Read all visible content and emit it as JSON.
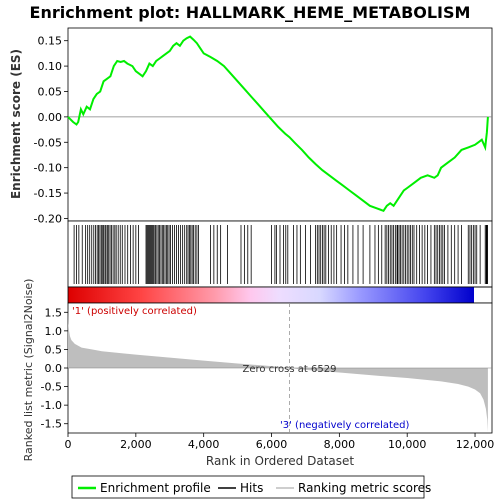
{
  "chart_data": {
    "type": "line",
    "title": "Enrichment plot: HALLMARK_HEME_METABOLISM",
    "xlabel": "Rank in Ordered Dataset",
    "es_panel": {
      "ylabel": "Enrichment score (ES)",
      "ylim": [
        -0.205,
        0.175
      ],
      "yticks": [
        "0.15",
        "0.10",
        "0.05",
        "0.00",
        "-0.05",
        "-0.10",
        "-0.15",
        "-0.20"
      ],
      "ytick_values": [
        0.15,
        0.1,
        0.05,
        0.0,
        -0.05,
        -0.1,
        -0.15,
        -0.2
      ],
      "series": [
        {
          "name": "Enrichment profile",
          "color": "#00ee00",
          "x": [
            0,
            150,
            250,
            300,
            380,
            450,
            550,
            650,
            750,
            850,
            950,
            1050,
            1150,
            1250,
            1350,
            1450,
            1550,
            1650,
            1750,
            1900,
            2000,
            2100,
            2200,
            2300,
            2400,
            2500,
            2600,
            2700,
            2800,
            2900,
            3000,
            3100,
            3200,
            3300,
            3400,
            3500,
            3600,
            3700,
            3800,
            3900,
            4000,
            4200,
            4400,
            4600,
            4800,
            5000,
            5200,
            5400,
            5600,
            5800,
            6000,
            6200,
            6400,
            6529,
            6700,
            6900,
            7100,
            7300,
            7500,
            7700,
            7900,
            8100,
            8300,
            8500,
            8700,
            8900,
            9100,
            9300,
            9400,
            9500,
            9600,
            9700,
            9800,
            9900,
            10000,
            10200,
            10400,
            10600,
            10800,
            10900,
            11000,
            11200,
            11400,
            11600,
            11800,
            12000,
            12100,
            12200,
            12300,
            12350,
            12380
          ],
          "y": [
            0.0,
            -0.01,
            -0.015,
            -0.01,
            0.015,
            0.005,
            0.02,
            0.015,
            0.035,
            0.045,
            0.05,
            0.07,
            0.075,
            0.08,
            0.1,
            0.11,
            0.108,
            0.11,
            0.105,
            0.1,
            0.09,
            0.085,
            0.08,
            0.09,
            0.105,
            0.1,
            0.11,
            0.115,
            0.12,
            0.125,
            0.13,
            0.14,
            0.145,
            0.14,
            0.15,
            0.155,
            0.158,
            0.152,
            0.145,
            0.135,
            0.125,
            0.118,
            0.11,
            0.1,
            0.085,
            0.07,
            0.055,
            0.04,
            0.025,
            0.01,
            -0.005,
            -0.02,
            -0.033,
            -0.04,
            -0.052,
            -0.065,
            -0.08,
            -0.093,
            -0.105,
            -0.115,
            -0.125,
            -0.135,
            -0.145,
            -0.155,
            -0.165,
            -0.175,
            -0.18,
            -0.185,
            -0.175,
            -0.17,
            -0.175,
            -0.165,
            -0.155,
            -0.145,
            -0.14,
            -0.13,
            -0.12,
            -0.115,
            -0.12,
            -0.115,
            -0.1,
            -0.09,
            -0.08,
            -0.065,
            -0.06,
            -0.055,
            -0.05,
            -0.045,
            -0.06,
            -0.03,
            0.0
          ]
        }
      ]
    },
    "hits_x": [
      180,
      250,
      320,
      420,
      520,
      580,
      640,
      700,
      760,
      810,
      860,
      900,
      940,
      980,
      1010,
      1050,
      1090,
      1120,
      1160,
      1200,
      1240,
      1280,
      1330,
      1380,
      1420,
      1480,
      1540,
      1600,
      1680,
      1760,
      1840,
      1920,
      2000,
      2080,
      2300,
      2330,
      2360,
      2390,
      2420,
      2450,
      2480,
      2510,
      2540,
      2580,
      2620,
      2660,
      2700,
      2740,
      2780,
      2820,
      2860,
      2900,
      2940,
      2980,
      3020,
      3080,
      3140,
      3200,
      3260,
      3320,
      3380,
      3440,
      3500,
      3540,
      3580,
      3620,
      3660,
      3700,
      3750,
      3800,
      3850,
      4200,
      4300,
      4400,
      4500,
      4700,
      5100,
      5200,
      5300,
      5400,
      6000,
      6100,
      6150,
      6250,
      6350,
      6420,
      6480,
      6650,
      6750,
      6850,
      7000,
      7150,
      7300,
      7350,
      7400,
      7450,
      7500,
      7550,
      7600,
      7680,
      7760,
      7840,
      7920,
      8050,
      8150,
      8250,
      8400,
      8550,
      8700,
      8900,
      9050,
      9150,
      9250,
      9350,
      9400,
      9450,
      9500,
      9550,
      9600,
      9650,
      9700,
      9720,
      9760,
      9800,
      9850,
      9900,
      9950,
      10000,
      10050,
      10100,
      10150,
      10200,
      10280,
      10360,
      10440,
      10520,
      10600,
      10700,
      10800,
      10850,
      10900,
      10950,
      11000,
      11050,
      11100,
      11200,
      11300,
      11400,
      11500,
      11600,
      11800,
      11850,
      11900,
      11950,
      12000,
      12050,
      12150,
      12300,
      12330,
      12350,
      12370
    ],
    "metric_panel": {
      "ylabel": "Ranked list metric (Signal2Noise)",
      "ylim": [
        -1.75,
        1.75
      ],
      "yticks": [
        "1.5",
        "1.0",
        "0.5",
        "0.0",
        "-0.5",
        "-1.0",
        "-1.5"
      ],
      "ytick_values": [
        1.5,
        1.0,
        0.5,
        0.0,
        -0.5,
        -1.0,
        -1.5
      ],
      "x": [
        0,
        10,
        30,
        60,
        100,
        200,
        400,
        700,
        1000,
        2000,
        3000,
        4000,
        5000,
        6000,
        6529,
        7000,
        8000,
        9000,
        10000,
        11000,
        11500,
        11800,
        12000,
        12150,
        12250,
        12320,
        12360,
        12380
      ],
      "y": [
        1.6,
        1.2,
        1.0,
        0.85,
        0.75,
        0.65,
        0.55,
        0.5,
        0.45,
        0.36,
        0.28,
        0.2,
        0.12,
        0.05,
        0.0,
        -0.05,
        -0.12,
        -0.2,
        -0.27,
        -0.36,
        -0.43,
        -0.5,
        -0.58,
        -0.68,
        -0.85,
        -1.1,
        -1.4,
        -1.72
      ],
      "zero_cross_label": "Zero cross at 6529",
      "zero_cross_x": 6529,
      "pos_label": "'1' (positively correlated)",
      "neg_label": "'3' (negatively correlated)",
      "fill_color": "#bebebe"
    },
    "xlim": [
      0,
      12500
    ],
    "xticks": [
      "0",
      "2,000",
      "4,000",
      "6,000",
      "8,000",
      "10,000",
      "12,000"
    ],
    "xtick_values": [
      0,
      2000,
      4000,
      6000,
      8000,
      10000,
      12000
    ],
    "legend": {
      "placement": "bottom",
      "items": [
        {
          "label": "Enrichment profile",
          "color": "#00ee00"
        },
        {
          "label": "Hits",
          "color": "#000000"
        },
        {
          "label": "Ranking metric scores",
          "color": "#bebebe"
        }
      ]
    },
    "colors": {
      "positive": "#ff0000",
      "negative": "#0000ff",
      "zero_line": "#808080"
    }
  }
}
